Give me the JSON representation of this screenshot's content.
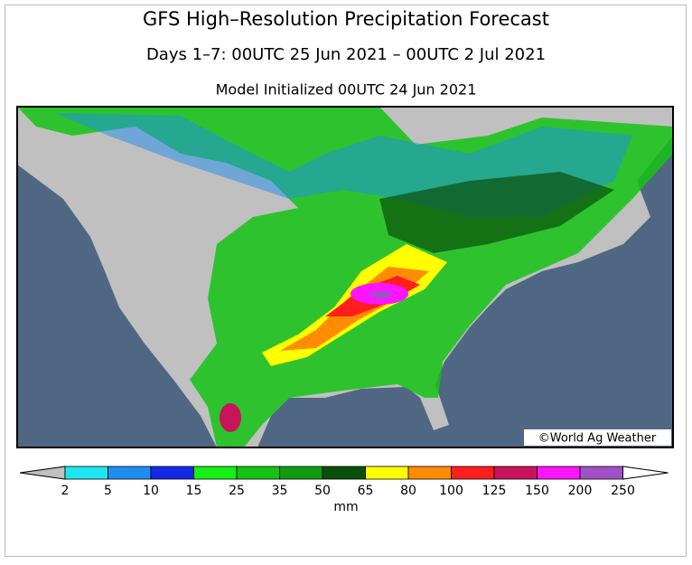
{
  "header": {
    "title": "GFS High–Resolution Precipitation Forecast",
    "subtitle": "Days 1–7: 00UTC 25 Jun 2021 – 00UTC 2 Jul 2021",
    "initialized": "Model Initialized 00UTC 24 Jun 2021"
  },
  "map": {
    "credit": "©World Ag Weather"
  },
  "legend": {
    "ticks": [
      2,
      5,
      10,
      15,
      25,
      35,
      50,
      65,
      80,
      100,
      125,
      150,
      200,
      250
    ],
    "colors": [
      "#1ee6f0",
      "#1e8cf0",
      "#1428e6",
      "#14f014",
      "#14c314",
      "#0f9b0f",
      "#0a500a",
      "#ffff00",
      "#ff8c00",
      "#ff1e1e",
      "#c8145a",
      "#ff14ff",
      "#a050c8"
    ],
    "below_color": "#c0c0c0",
    "above_color": "#ffffff",
    "unit": "mm"
  }
}
